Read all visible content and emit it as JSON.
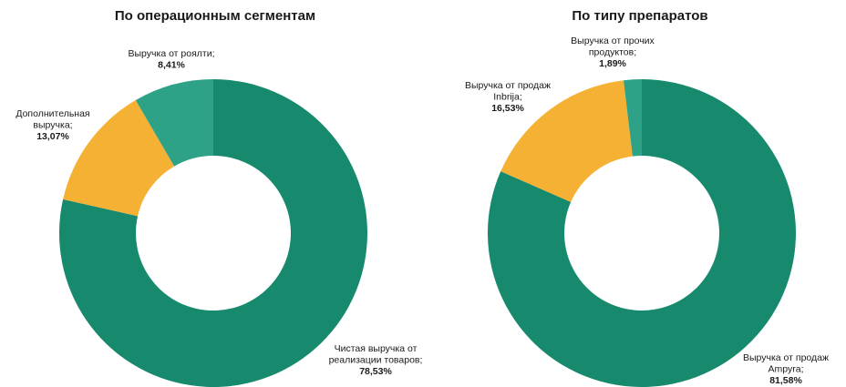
{
  "chart_data": [
    {
      "type": "pie",
      "title": "По операционным сегментам",
      "slices": [
        {
          "label_lines": [
            "Чистая выручка от",
            "реализации товаров;"
          ],
          "pct_text": "78,53%",
          "value": 78.53,
          "color": "#178a6e"
        },
        {
          "label_lines": [
            "Дополнительная",
            "выручка;"
          ],
          "pct_text": "13,07%",
          "value": 13.07,
          "color": "#f5b133"
        },
        {
          "label_lines": [
            "Выручка от роялти;"
          ],
          "pct_text": "8,41%",
          "value": 8.41,
          "color": "#2ea287"
        }
      ]
    },
    {
      "type": "pie",
      "title": "По типу препаратов",
      "slices": [
        {
          "label_lines": [
            "Выручка от продаж",
            "Ampyra;"
          ],
          "pct_text": "81,58%",
          "value": 81.58,
          "color": "#178a6e"
        },
        {
          "label_lines": [
            "Выручка от продаж",
            "Inbrija;"
          ],
          "pct_text": "16,53%",
          "value": 16.53,
          "color": "#f5b133"
        },
        {
          "label_lines": [
            "Выручка от прочих",
            "продуктов;"
          ],
          "pct_text": "1,89%",
          "value": 1.89,
          "color": "#2ea287"
        }
      ]
    }
  ]
}
